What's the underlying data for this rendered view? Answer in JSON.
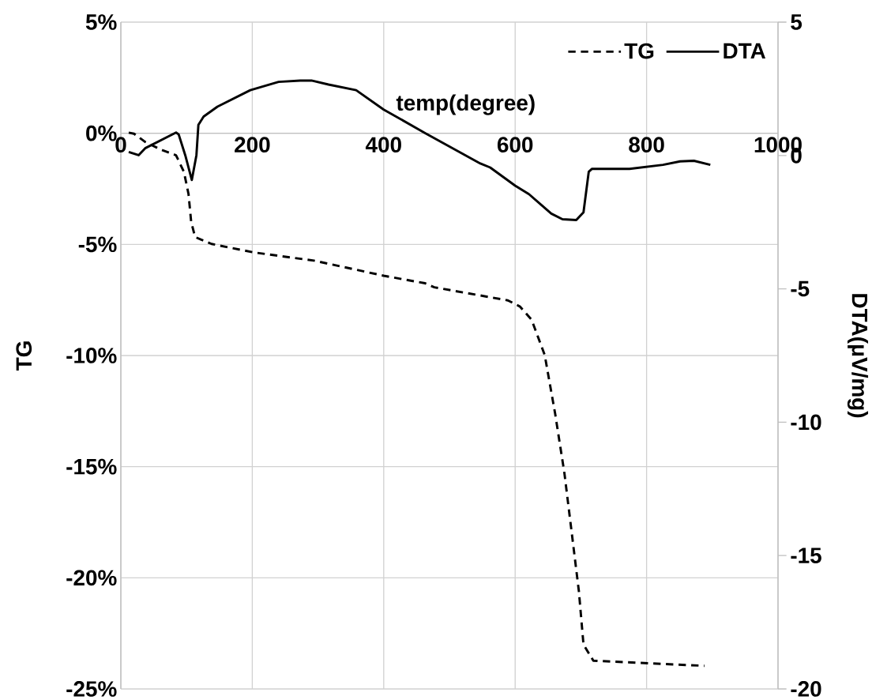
{
  "chart_data": {
    "type": "line",
    "xlabel": "temp(degree)",
    "ylabel": "TG",
    "y2label": "DTA(μV/mg)",
    "xlim": [
      0,
      1000
    ],
    "xticks": [
      0,
      200,
      400,
      600,
      800,
      1000
    ],
    "ylim": [
      -25,
      5
    ],
    "yticks": [
      {
        "value": 5,
        "label": "5%"
      },
      {
        "value": 0,
        "label": "0%"
      },
      {
        "value": -5,
        "label": "-5%"
      },
      {
        "value": -10,
        "label": "-10%"
      },
      {
        "value": -15,
        "label": "-15%"
      },
      {
        "value": -20,
        "label": "-20%"
      },
      {
        "value": -25,
        "label": "-25%"
      }
    ],
    "y2lim": [
      -20,
      5
    ],
    "y2ticks": [
      5,
      0,
      -5,
      -10,
      -15,
      -20
    ],
    "grid": true,
    "legend": "top right",
    "series": [
      {
        "name": "TG",
        "color": "#000000",
        "line_style": "dashed",
        "x": [
          12,
          20,
          37,
          62,
          84,
          96,
          103,
          107,
          113,
          138,
          202,
          294,
          400,
          463,
          477,
          589,
          607,
          625,
          645,
          661,
          675,
          686,
          697,
          704,
          719,
          791,
          888
        ],
        "values": [
          0.03,
          -0.02,
          -0.39,
          -0.75,
          -0.99,
          -1.74,
          -2.74,
          -3.98,
          -4.67,
          -4.98,
          -5.36,
          -5.73,
          -6.41,
          -6.75,
          -6.93,
          -7.52,
          -7.79,
          -8.39,
          -9.98,
          -12.64,
          -15.3,
          -17.95,
          -20.61,
          -23.0,
          -23.73,
          -23.83,
          -23.96
        ]
      },
      {
        "name": "DTA",
        "color": "#000000",
        "line_style": "solid",
        "axis": "y2",
        "x": [
          12,
          27,
          37,
          84,
          88,
          98,
          108,
          115,
          118,
          126,
          147,
          197,
          240,
          273,
          290,
          316,
          358,
          400,
          463,
          547,
          562,
          600,
          621,
          655,
          672,
          693,
          704,
          712,
          717,
          774,
          825,
          851,
          872,
          897
        ],
        "values": [
          0.13,
          0.01,
          0.27,
          0.86,
          0.79,
          0.01,
          -0.92,
          0.01,
          1.15,
          1.46,
          1.83,
          2.45,
          2.76,
          2.81,
          2.81,
          2.66,
          2.45,
          1.72,
          0.84,
          -0.3,
          -0.45,
          -1.13,
          -1.45,
          -2.18,
          -2.39,
          -2.42,
          -2.13,
          -0.61,
          -0.5,
          -0.5,
          -0.35,
          -0.22,
          -0.2,
          -0.35
        ]
      }
    ]
  }
}
